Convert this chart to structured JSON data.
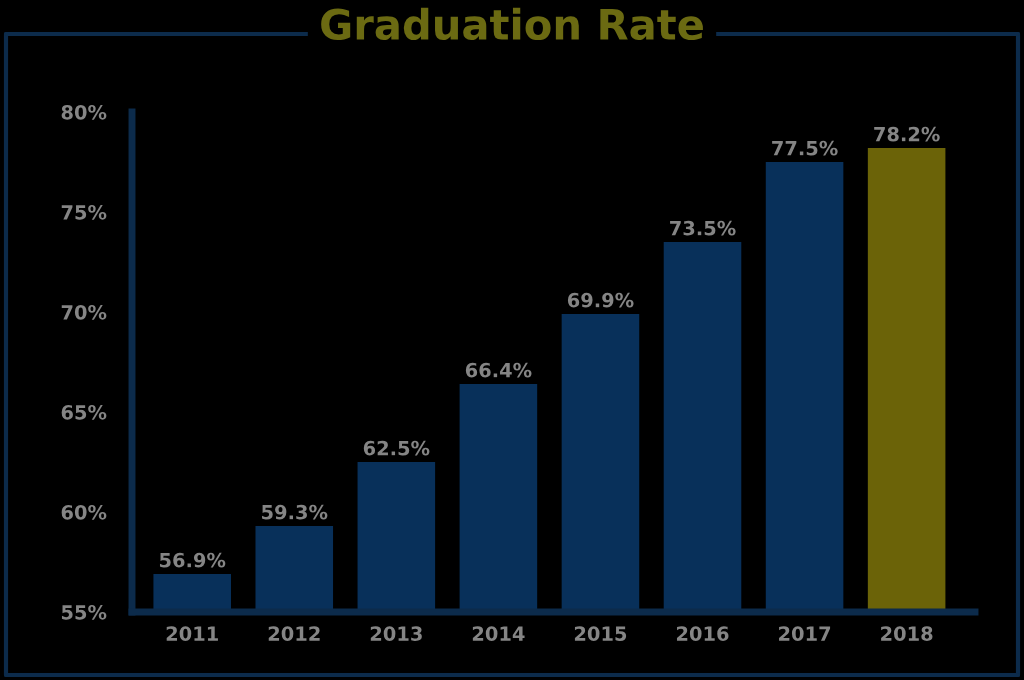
{
  "chart_data": {
    "type": "bar",
    "title": "Graduation Rate",
    "categories": [
      "2011",
      "2012",
      "2013",
      "2014",
      "2015",
      "2016",
      "2017",
      "2018"
    ],
    "values": [
      56.9,
      59.3,
      62.5,
      66.4,
      69.9,
      73.5,
      77.5,
      78.2
    ],
    "colors": [
      "#08305a",
      "#08305a",
      "#08305a",
      "#08305a",
      "#08305a",
      "#08305a",
      "#08305a",
      "#6b6308"
    ],
    "value_labels": [
      "56.9%",
      "59.3%",
      "62.5%",
      "66.4%",
      "69.9%",
      "73.5%",
      "77.5%",
      "78.2%"
    ],
    "ylim": [
      55,
      80
    ],
    "yticks": [
      {
        "value": 55,
        "label": "55%"
      },
      {
        "value": 60,
        "label": "60%"
      },
      {
        "value": 65,
        "label": "65%"
      },
      {
        "value": 70,
        "label": "70%"
      },
      {
        "value": 75,
        "label": "75%"
      },
      {
        "value": 80,
        "label": "80%"
      }
    ]
  }
}
